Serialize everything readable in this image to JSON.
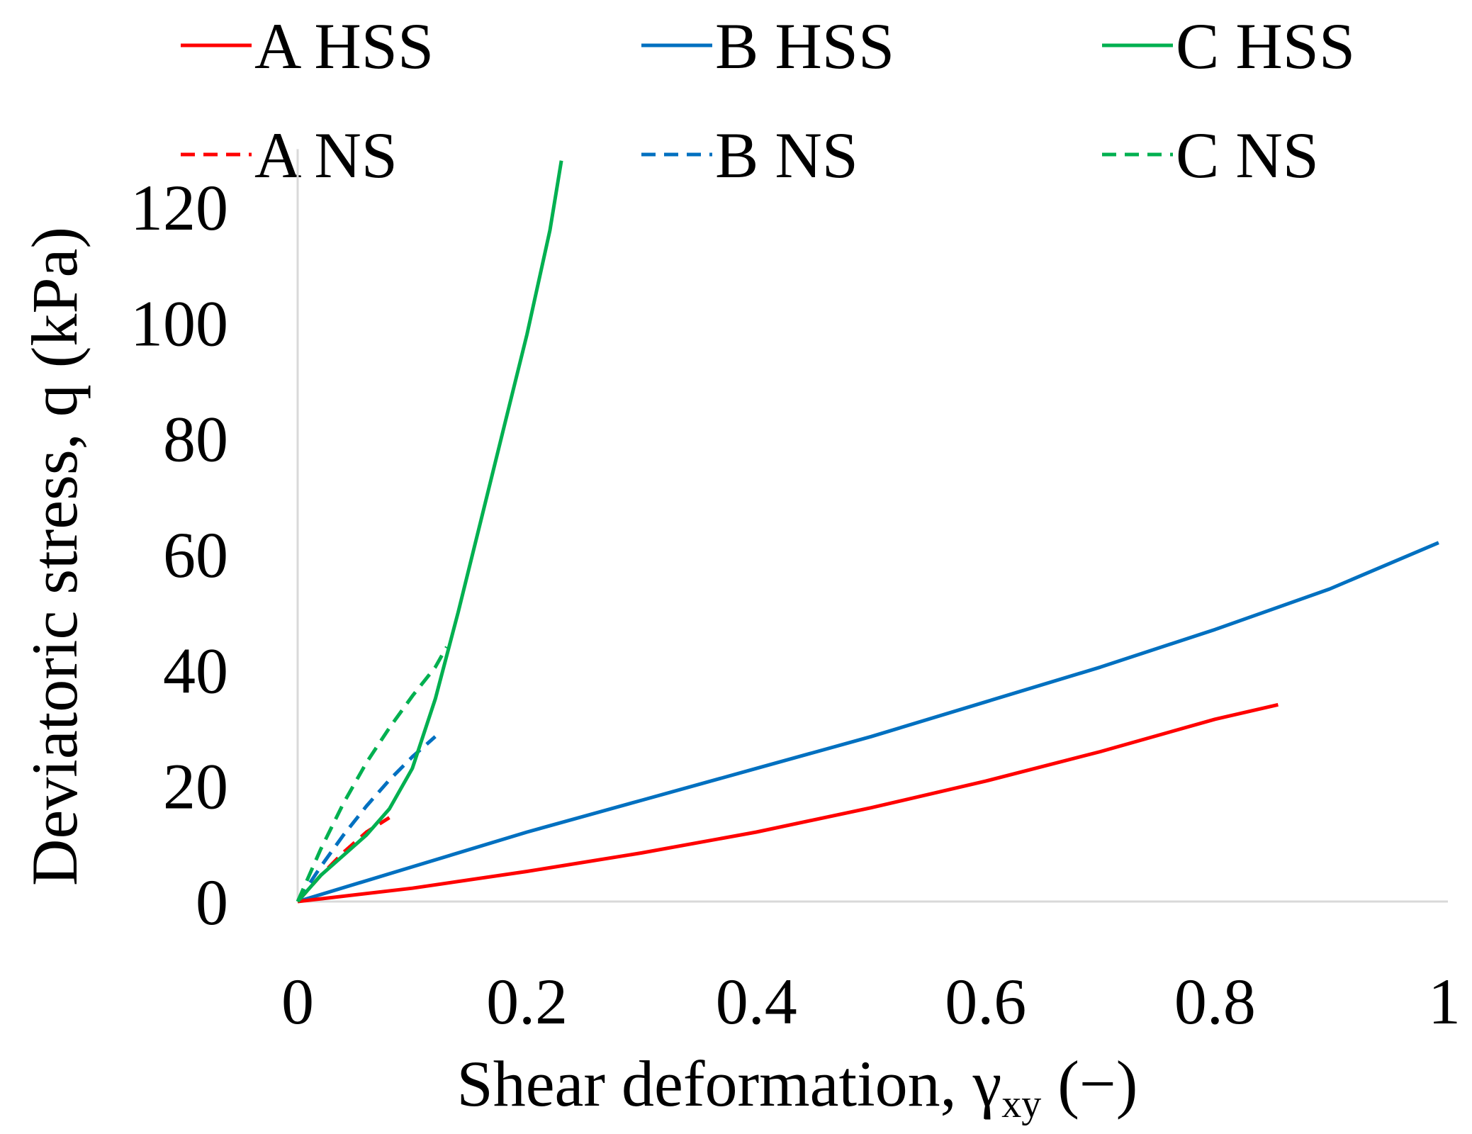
{
  "chart_data": {
    "type": "line",
    "title": "",
    "xlabel": {
      "prefix": "Shear deformation, ",
      "symbol": "γ",
      "subscript": "xy",
      "suffix": " (−)"
    },
    "ylabel": "Deviatoric stress, q (kPa)",
    "xlim": [
      0,
      1
    ],
    "ylim": [
      0,
      130
    ],
    "x_ticks": [
      {
        "value": 0,
        "label": "0"
      },
      {
        "value": 0.2,
        "label": "0.2"
      },
      {
        "value": 0.4,
        "label": "0.4"
      },
      {
        "value": 0.6,
        "label": "0.6"
      },
      {
        "value": 0.8,
        "label": "0.8"
      },
      {
        "value": 1,
        "label": "1"
      }
    ],
    "y_ticks": [
      {
        "value": 0,
        "label": "0"
      },
      {
        "value": 20,
        "label": "20"
      },
      {
        "value": 40,
        "label": "40"
      },
      {
        "value": 60,
        "label": "60"
      },
      {
        "value": 80,
        "label": "80"
      },
      {
        "value": 100,
        "label": "100"
      },
      {
        "value": 120,
        "label": "120"
      }
    ],
    "grid": false,
    "legend_position": "top",
    "series": [
      {
        "name": "A HSS",
        "color": "#ff0000",
        "dash": "solid",
        "x": [
          0,
          0.1,
          0.2,
          0.3,
          0.4,
          0.5,
          0.6,
          0.7,
          0.8,
          0.855
        ],
        "y": [
          0,
          2.3,
          5.2,
          8.4,
          12.0,
          16.2,
          20.8,
          25.9,
          31.5,
          34.0
        ]
      },
      {
        "name": "B HSS",
        "color": "#0070c0",
        "dash": "solid",
        "x": [
          0,
          0.1,
          0.2,
          0.3,
          0.4,
          0.5,
          0.6,
          0.7,
          0.8,
          0.9,
          0.995
        ],
        "y": [
          0,
          6.0,
          12.0,
          17.5,
          23.0,
          28.5,
          34.5,
          40.5,
          47.0,
          54.0,
          62.0
        ]
      },
      {
        "name": "C HSS",
        "color": "#00b050",
        "dash": "solid",
        "x": [
          0,
          0.02,
          0.04,
          0.06,
          0.08,
          0.1,
          0.12,
          0.14,
          0.16,
          0.18,
          0.2,
          0.22,
          0.23
        ],
        "y": [
          0,
          4.5,
          8.0,
          11.5,
          16.0,
          23.0,
          35.0,
          50.0,
          66.0,
          82.0,
          98.0,
          116.0,
          128.0
        ]
      },
      {
        "name": "A NS",
        "color": "#ff0000",
        "dash": "dashed",
        "x": [
          0,
          0.02,
          0.04,
          0.06,
          0.08
        ],
        "y": [
          0,
          4.5,
          8.5,
          12.0,
          14.5
        ]
      },
      {
        "name": "B NS",
        "color": "#0070c0",
        "dash": "dashed",
        "x": [
          0,
          0.02,
          0.04,
          0.06,
          0.08,
          0.1,
          0.12
        ],
        "y": [
          0,
          6.0,
          11.5,
          16.5,
          21.0,
          25.0,
          28.5
        ]
      },
      {
        "name": "C NS",
        "color": "#00b050",
        "dash": "dashed",
        "x": [
          0,
          0.02,
          0.04,
          0.06,
          0.08,
          0.1,
          0.12,
          0.13
        ],
        "y": [
          0,
          9.0,
          17.0,
          24.0,
          30.0,
          35.5,
          40.5,
          44.0
        ]
      }
    ]
  }
}
